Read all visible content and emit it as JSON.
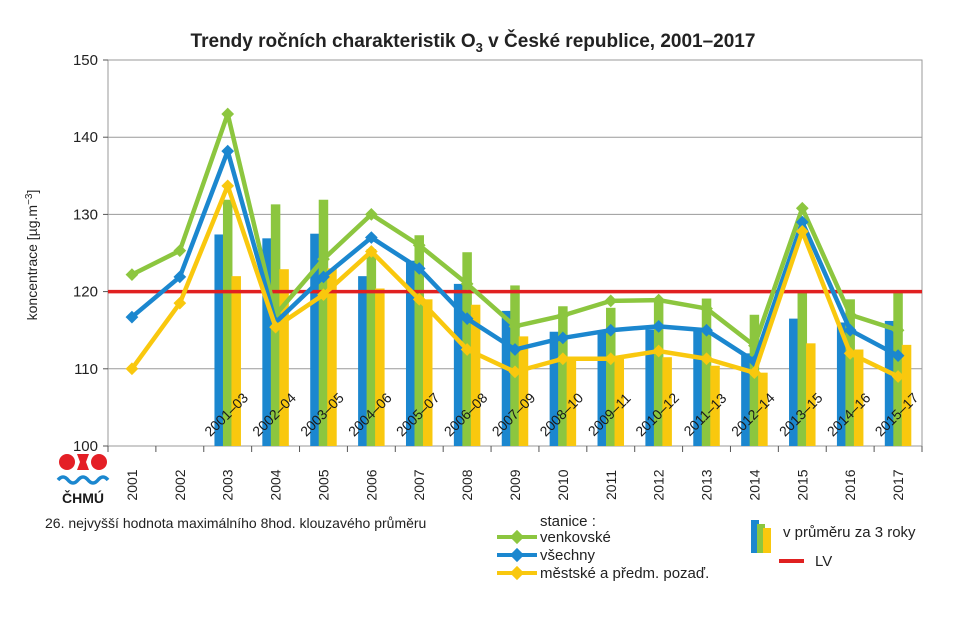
{
  "chart_data": {
    "type": "bar+line",
    "title": "Trendy ročních charakteristik O",
    "title_sub": "3",
    "title_rest": " v České republice, 2001–2017",
    "ylabel": "koncentrace [µg.m",
    "ylabel_sup": "−3",
    "ylabel_end": "]",
    "ylim": [
      100,
      150
    ],
    "yticks": [
      100,
      110,
      120,
      130,
      140,
      150
    ],
    "grid": true,
    "categories": [
      "2001",
      "2002",
      "2003",
      "2004",
      "2005",
      "2006",
      "2007",
      "2008",
      "2009",
      "2010",
      "2011",
      "2012",
      "2013",
      "2014",
      "2015",
      "2016",
      "2017"
    ],
    "period_labels": [
      "2001–03",
      "2002–04",
      "2003–05",
      "2004–06",
      "2005–07",
      "2006–08",
      "2007–09",
      "2008–10",
      "2009–11",
      "2010–12",
      "2011–13",
      "2012–14",
      "2013–15",
      "2014–16",
      "2015–17"
    ],
    "period_start_index": 2,
    "bars": [
      {
        "name": "všechny",
        "color": "#1b87cf",
        "values": [
          127.4,
          126.9,
          127.5,
          122.0,
          124.0,
          121.0,
          117.5,
          114.8,
          115.0,
          115.1,
          115.2,
          112.0,
          116.5,
          116.0,
          116.2
        ]
      },
      {
        "name": "venkovské",
        "color": "#8cc63f",
        "values": [
          131.9,
          131.3,
          131.9,
          125.5,
          127.3,
          125.1,
          120.8,
          118.1,
          117.9,
          119.0,
          119.1,
          117.0,
          120.0,
          119.0,
          120.0
        ]
      },
      {
        "name": "městské a předm. pozaď.",
        "color": "#f9c80e",
        "values": [
          122.0,
          122.9,
          123.0,
          120.4,
          119.0,
          118.3,
          114.2,
          111.4,
          111.3,
          111.5,
          110.4,
          109.5,
          113.3,
          112.5,
          113.1
        ]
      }
    ],
    "series": [
      {
        "name": "venkovské",
        "color": "#8cc63f",
        "values": [
          122.2,
          125.3,
          143.0,
          117.0,
          124.2,
          130.0,
          126.0,
          121.0,
          115.5,
          116.9,
          118.8,
          118.9,
          117.8,
          113.0,
          130.8,
          117.0,
          115.0
        ]
      },
      {
        "name": "všechny",
        "color": "#1b87cf",
        "values": [
          116.7,
          121.9,
          138.2,
          116.0,
          121.9,
          127.0,
          123.0,
          116.5,
          112.5,
          114.0,
          115.0,
          115.5,
          115.0,
          111.0,
          129.0,
          115.0,
          111.7
        ]
      },
      {
        "name": "městské a předm. pozaď.",
        "color": "#f9c80e",
        "values": [
          110.0,
          118.5,
          133.7,
          115.4,
          119.6,
          125.2,
          119.0,
          112.5,
          109.6,
          111.3,
          111.3,
          112.3,
          111.3,
          109.5,
          127.8,
          112.0,
          109.0
        ]
      }
    ],
    "limit": {
      "name": "LV",
      "value": 120,
      "color": "#e02020"
    },
    "note": "26. nejvyšší hodnota maximálního 8hod. klouzavého průměru",
    "legend": {
      "stations_title": "stanice :",
      "bars_label": "v průměru za 3 roky",
      "limit_label": "LV"
    }
  },
  "logo": {
    "text": "ČHMÚ"
  }
}
